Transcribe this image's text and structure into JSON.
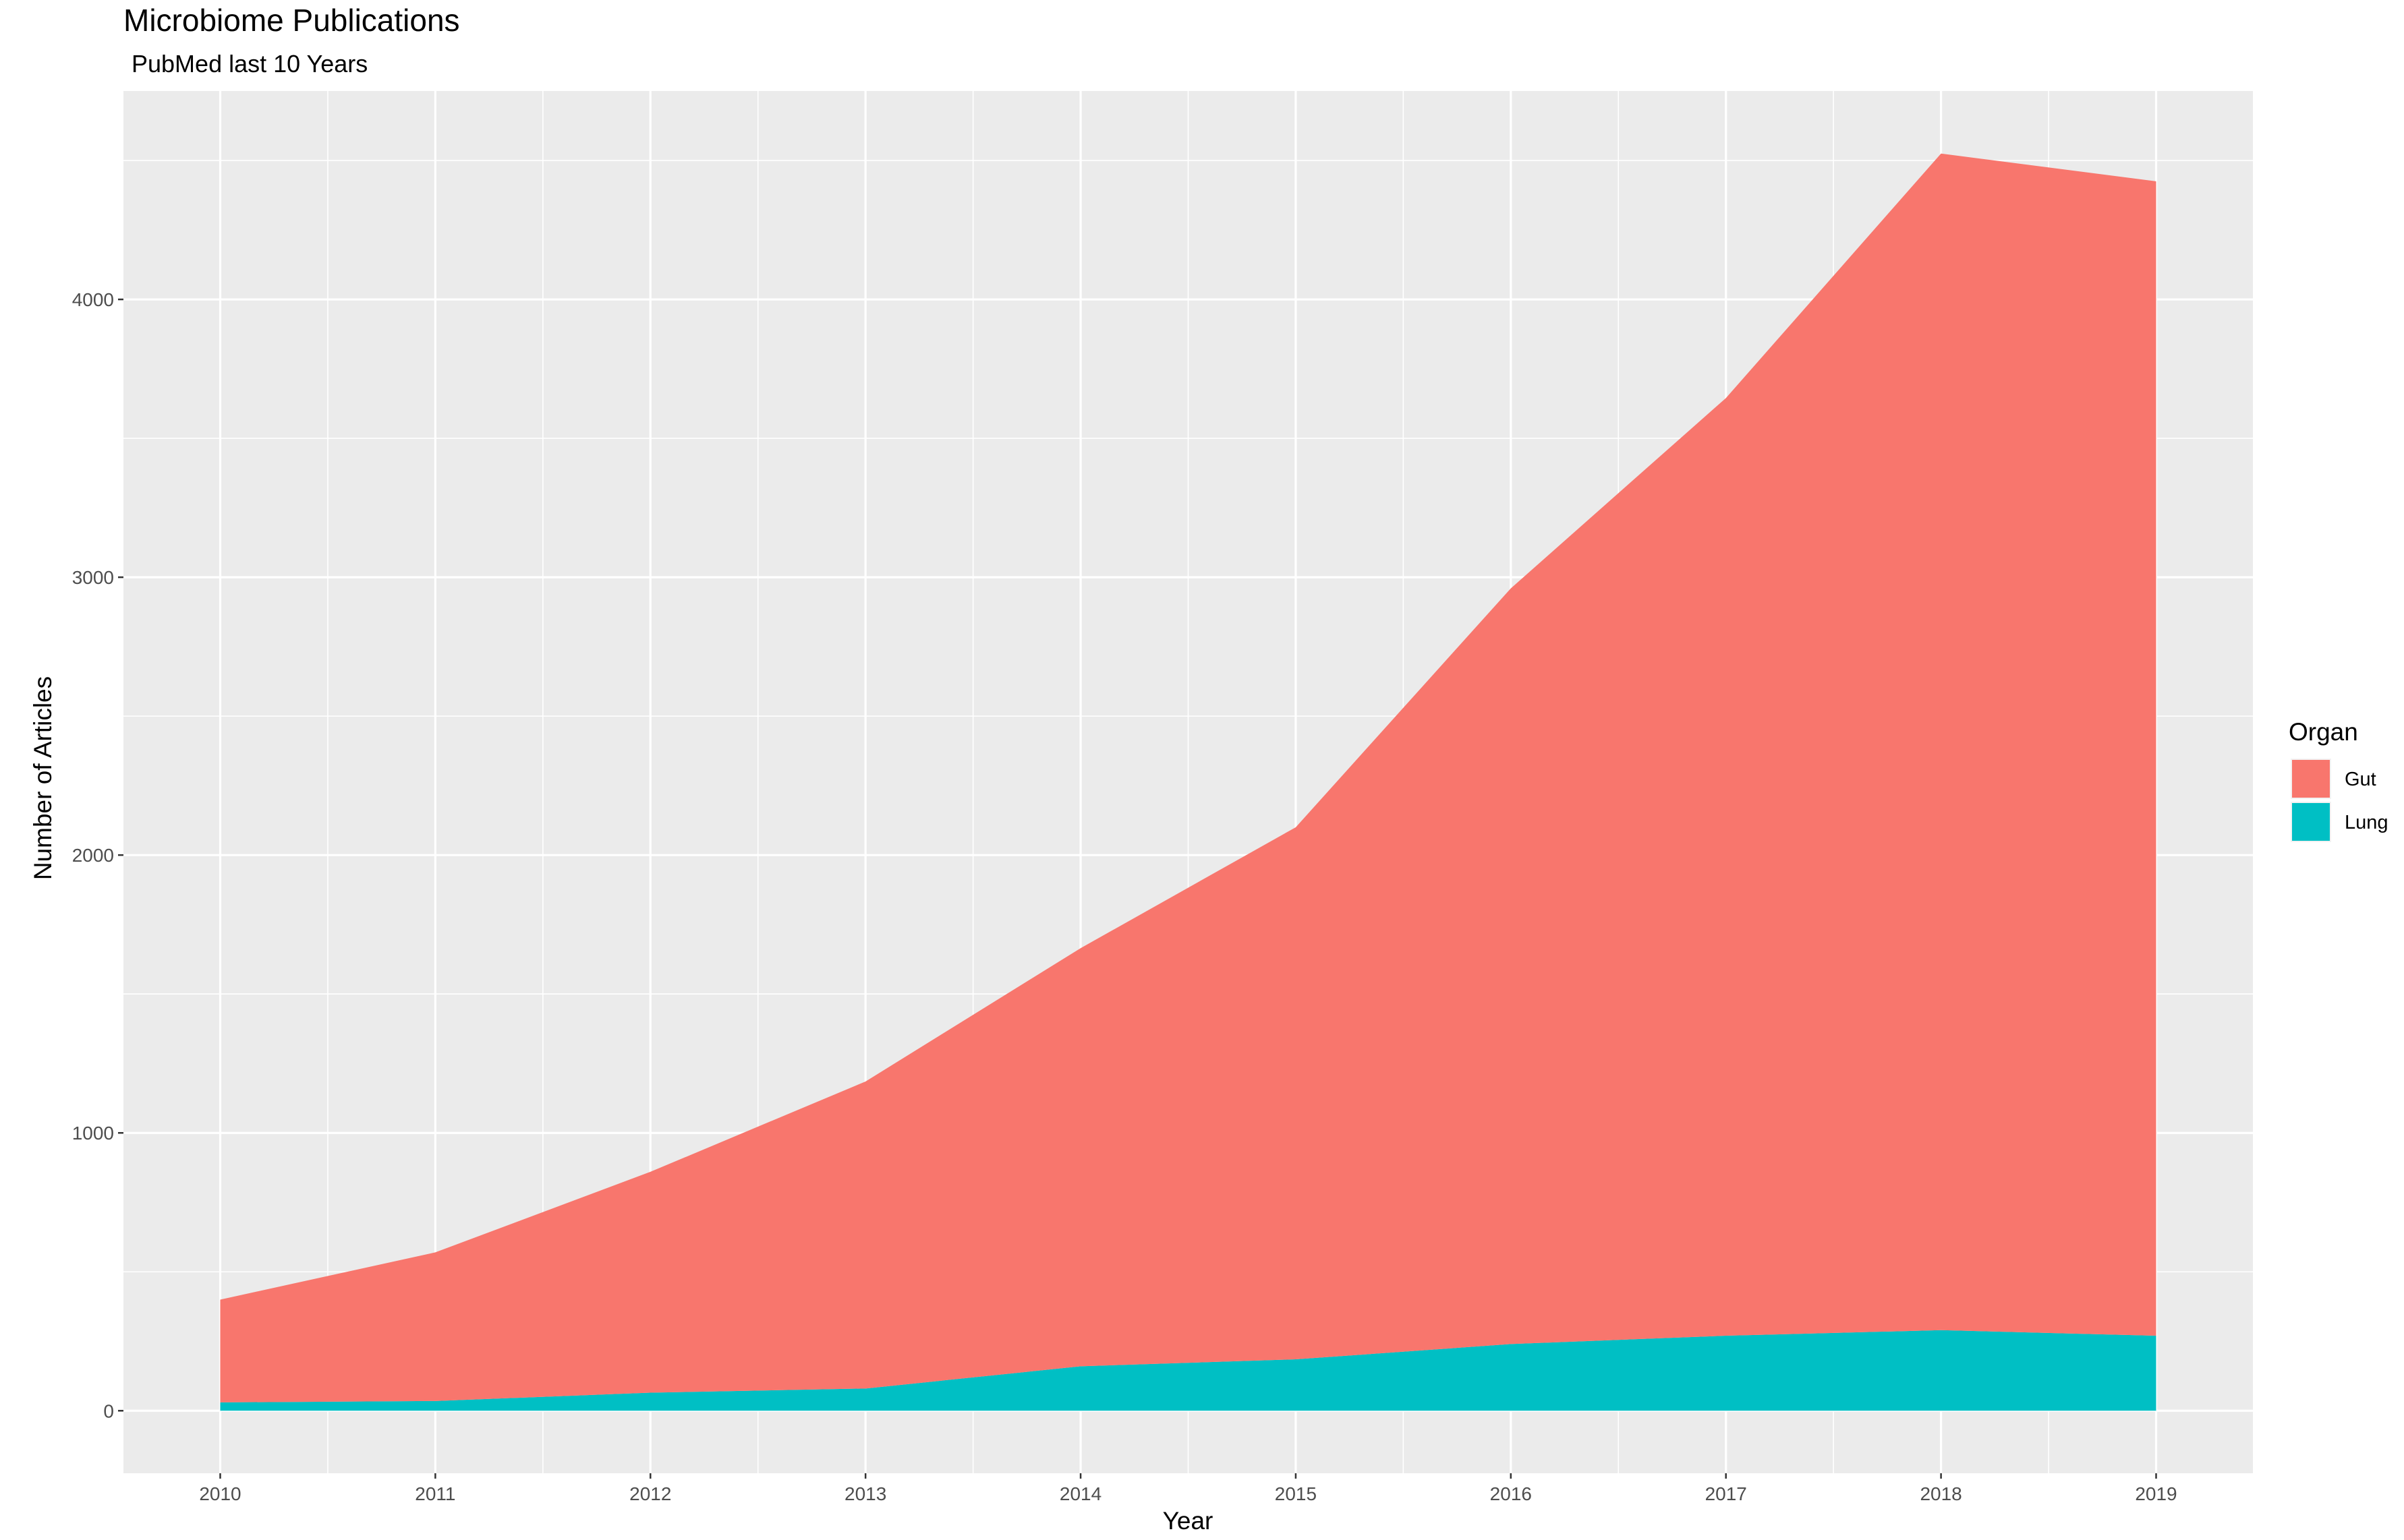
{
  "chart_data": {
    "type": "area",
    "stacked": true,
    "title": "Microbiome Publications",
    "subtitle": "PubMed last 10 Years",
    "xlabel": "Year",
    "ylabel": "Number of Articles",
    "x": [
      "2010",
      "2011",
      "2012",
      "2013",
      "2014",
      "2015",
      "2016",
      "2017",
      "2018",
      "2019"
    ],
    "xlim": [
      2009.55,
      2019.45
    ],
    "ylim": [
      -225,
      4750
    ],
    "yticks": [
      0,
      1000,
      2000,
      3000,
      4000
    ],
    "yticks_labels": [
      "0",
      "1000",
      "2000",
      "3000",
      "4000"
    ],
    "series": [
      {
        "name": "Gut",
        "color": "#F8766D",
        "values": [
          370,
          535,
          795,
          1105,
          1505,
          1915,
          2720,
          3375,
          4235,
          4155
        ]
      },
      {
        "name": "Lung",
        "color": "#00BFC4",
        "values": [
          30,
          35,
          65,
          80,
          160,
          185,
          240,
          270,
          290,
          270
        ]
      }
    ],
    "stack_order_bottom_to_top": [
      "Lung",
      "Gut"
    ],
    "legend": {
      "title": "Organ",
      "position": "right",
      "entries": [
        "Gut",
        "Lung"
      ]
    },
    "grid": true,
    "panel_background": "#EBEBEB",
    "grid_color": "#FFFFFF"
  }
}
